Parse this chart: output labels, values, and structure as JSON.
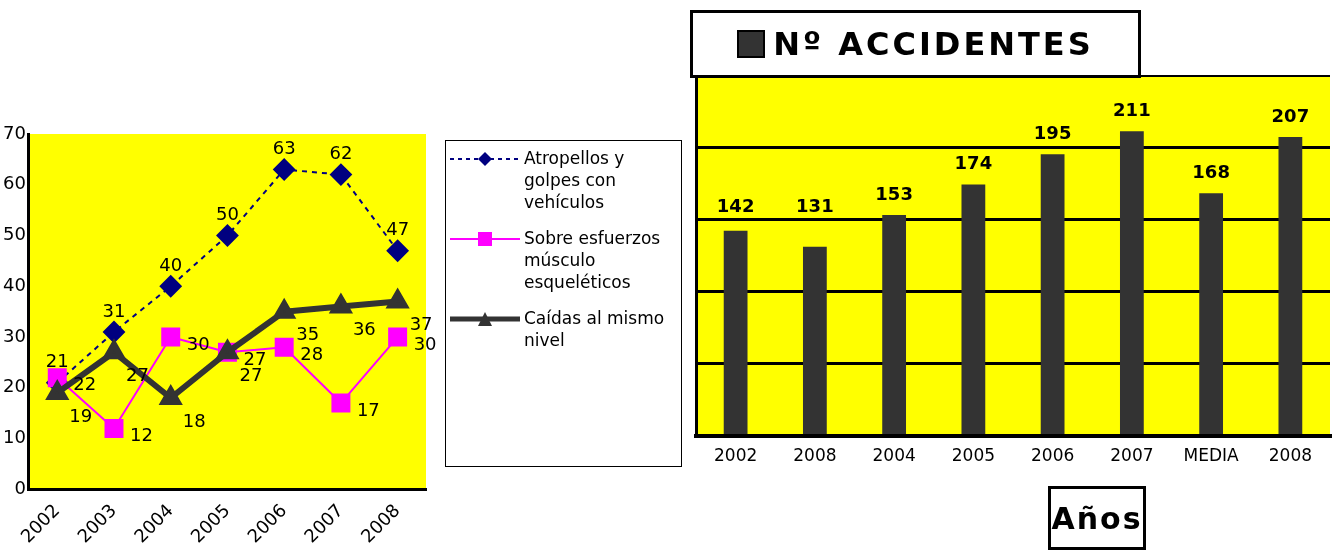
{
  "chart_data": [
    {
      "type": "line",
      "categories": [
        "2002",
        "2003",
        "2004",
        "2005",
        "2006",
        "2007",
        "2008"
      ],
      "ylim": [
        0,
        70
      ],
      "yticks": [
        0,
        10,
        20,
        30,
        40,
        50,
        60,
        70
      ],
      "grid": false,
      "legend": "right",
      "data_labels": true,
      "series": [
        {
          "name": "Atropellos y golpes con vehículos",
          "color": "#000080",
          "marker": "diamond",
          "line_style": "dashed",
          "values": [
            21,
            31,
            40,
            50,
            63,
            62,
            47
          ]
        },
        {
          "name": "Sobre esfuerzos músculo esqueléticos",
          "color": "#ff00ff",
          "marker": "square",
          "line_style": "solid",
          "values": [
            22,
            12,
            30,
            27,
            28,
            17,
            30
          ]
        },
        {
          "name": "Caídas al mismo nivel",
          "color": "#333333",
          "marker": "triangle",
          "line_style": "solid",
          "values": [
            19,
            27,
            18,
            27,
            35,
            36,
            37
          ]
        }
      ]
    },
    {
      "type": "bar",
      "xlabel": "Años",
      "categories": [
        "2002",
        "2008",
        "2004",
        "2005",
        "2006",
        "2007",
        "MEDIA",
        "2008"
      ],
      "grid": "y",
      "tick_labels": "x",
      "legend": "top",
      "data_labels": true,
      "series": [
        {
          "name": "Nº ACCIDENTES",
          "color": "#333333",
          "values": [
            142,
            131,
            153,
            174,
            195,
            211,
            168,
            207
          ]
        }
      ]
    }
  ]
}
